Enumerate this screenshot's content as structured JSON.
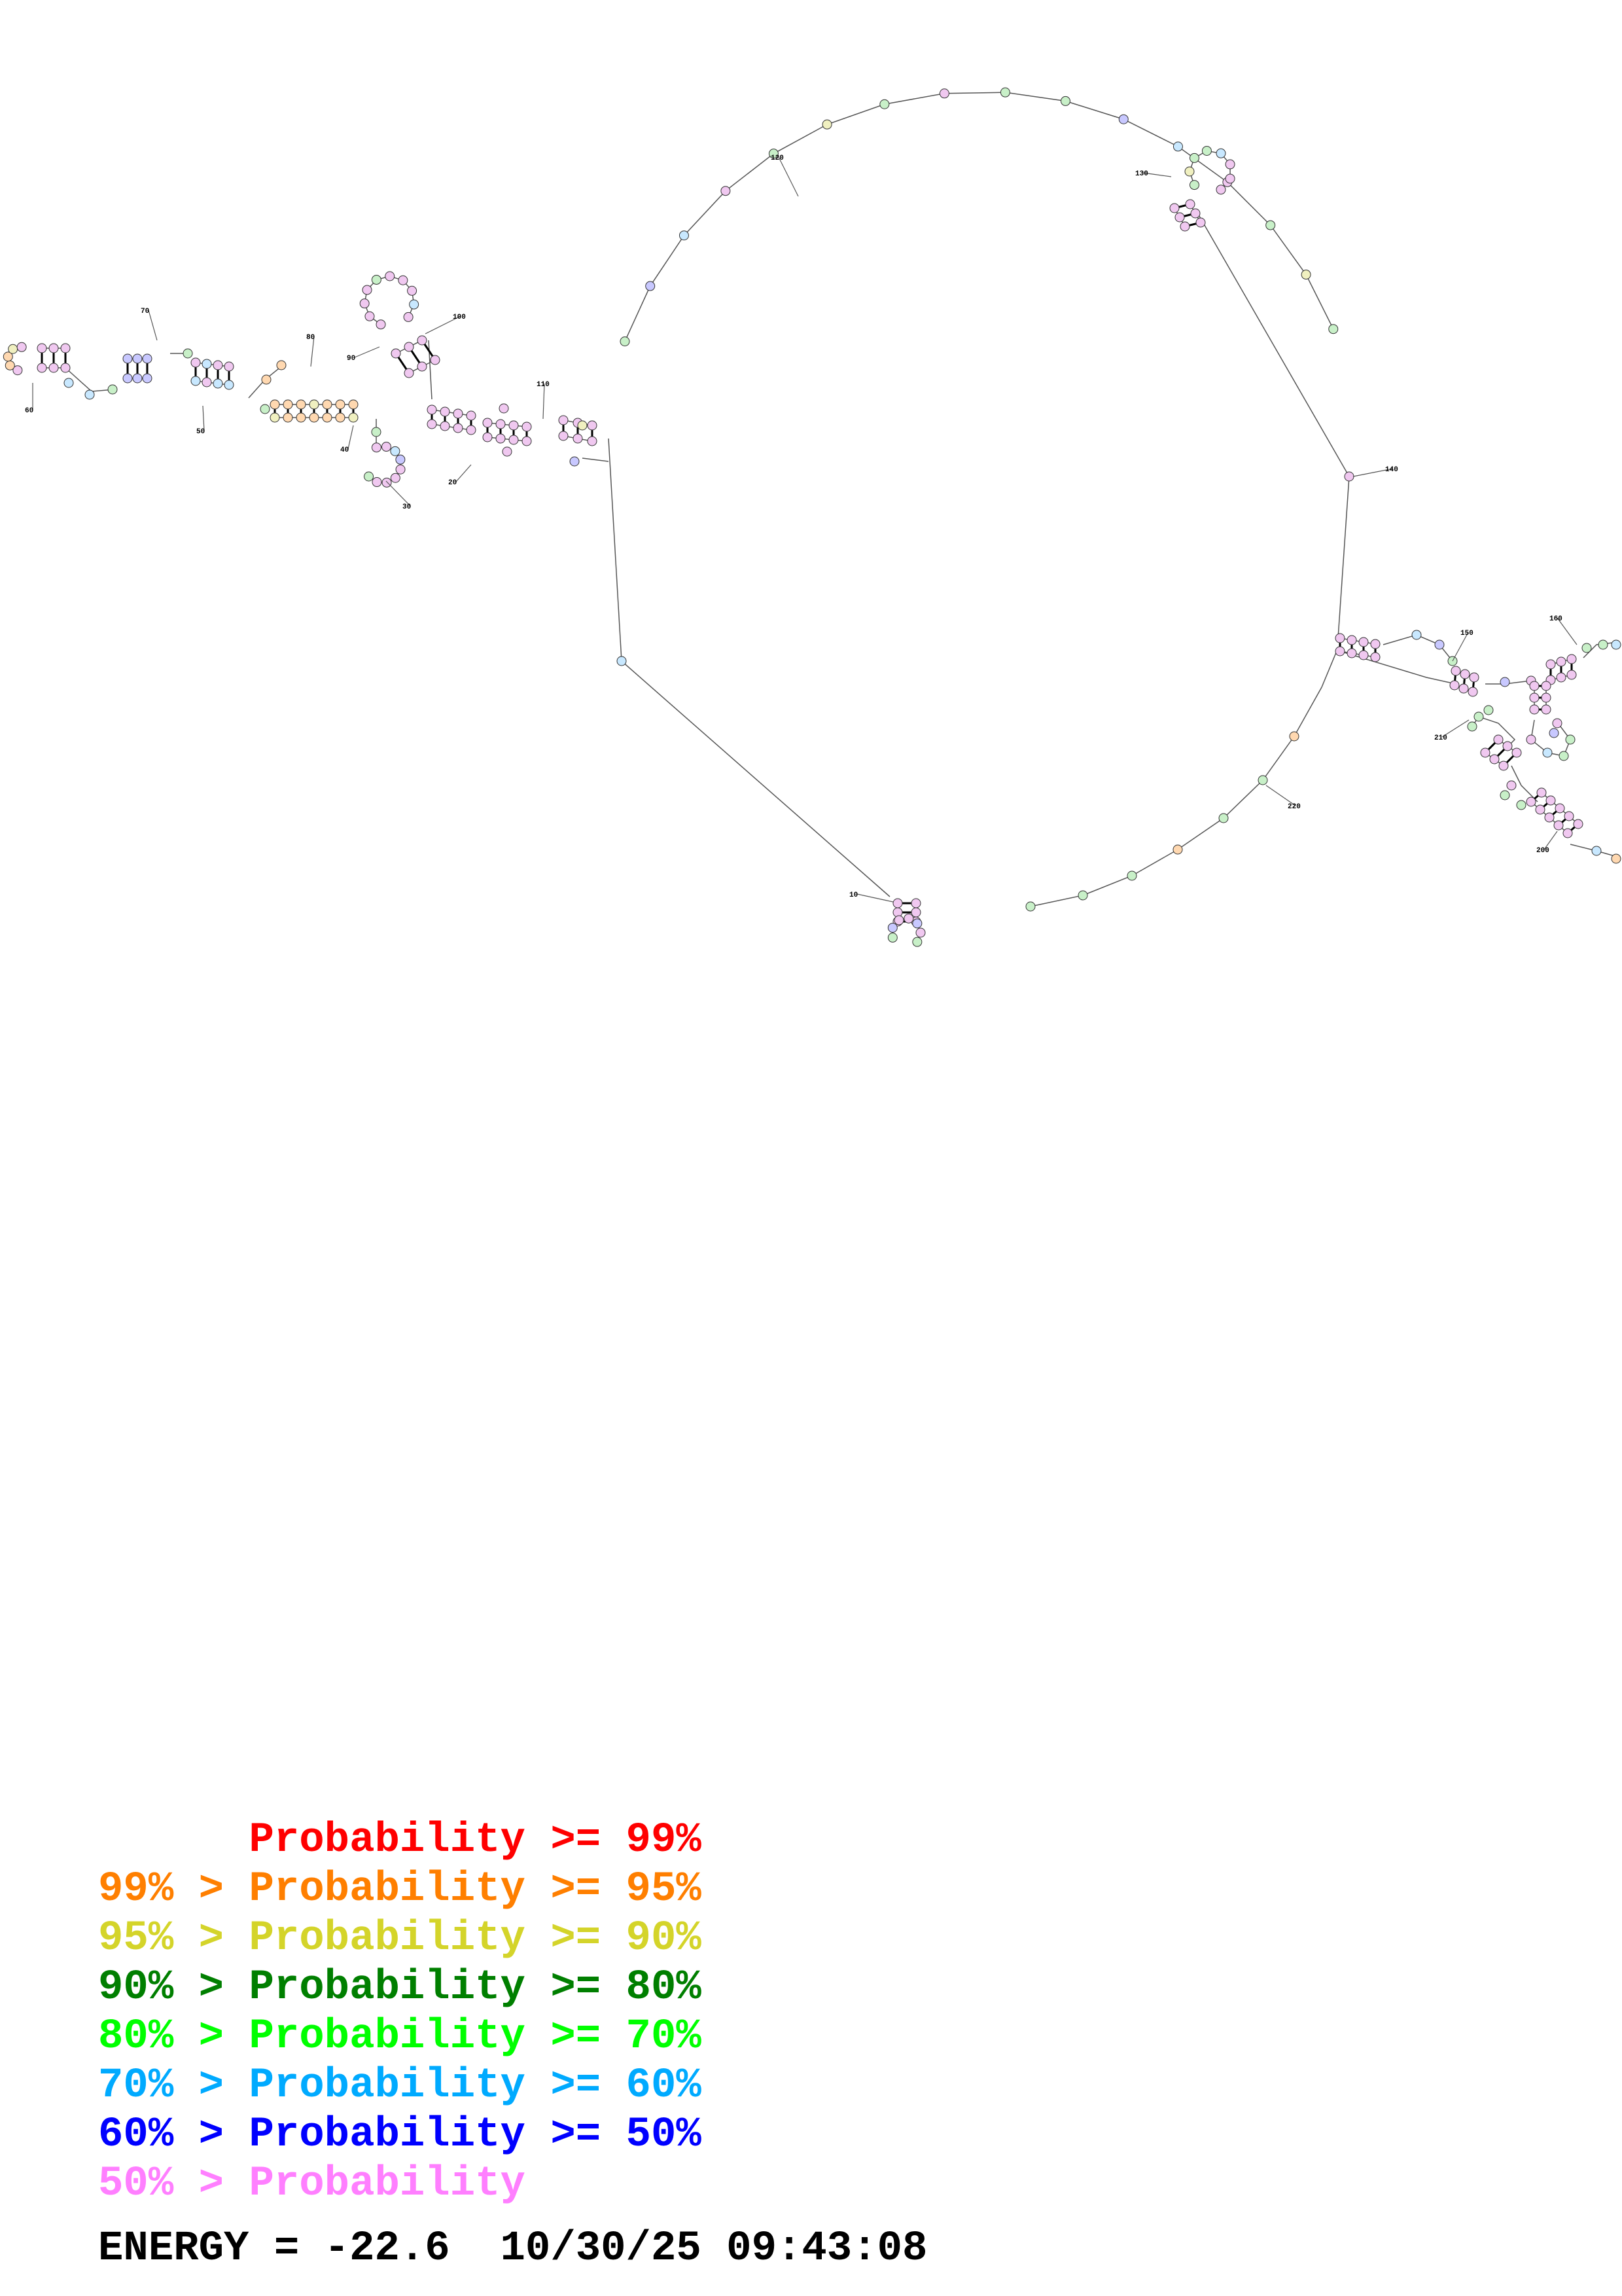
{
  "legend": [
    {
      "prefix": "",
      "label": "Probability",
      "cmp": ">=",
      "value": "99%",
      "color": "#ff0000"
    },
    {
      "prefix": "99% >",
      "label": "Probability",
      "cmp": ">=",
      "value": "95%",
      "color": "#ff7f00"
    },
    {
      "prefix": "95% >",
      "label": "Probability",
      "cmp": ">=",
      "value": "90%",
      "color": "#d4d42a"
    },
    {
      "prefix": "90% >",
      "label": "Probability",
      "cmp": ">=",
      "value": "80%",
      "color": "#007f00"
    },
    {
      "prefix": "80% >",
      "label": "Probability",
      "cmp": ">=",
      "value": "70%",
      "color": "#00ff00"
    },
    {
      "prefix": "70% >",
      "label": "Probability",
      "cmp": ">=",
      "value": "60%",
      "color": "#00aaff"
    },
    {
      "prefix": "60% >",
      "label": "Probability",
      "cmp": ">=",
      "value": "50%",
      "color": "#0000ff"
    },
    {
      "prefix": "50% >",
      "label": "Probability",
      "cmp": "",
      "value": "",
      "color": "#ff7fff"
    }
  ],
  "footer": {
    "energy_label": "ENERGY =",
    "energy_value": "-22.6",
    "timestamp": "10/30/25 09:43:08"
  },
  "structure": {
    "position_labels": [
      "10",
      "20",
      "30",
      "40",
      "50",
      "60",
      "70",
      "80",
      "90",
      "100",
      "110",
      "120",
      "130",
      "140",
      "150",
      "160",
      "200",
      "210",
      "220"
    ],
    "node_colors": {
      "pink": "#f0c8f0",
      "green": "#c8f0c8",
      "blue": "#c8c8ff",
      "cyan": "#c8e8ff",
      "orange": "#ffd8b0",
      "yellow": "#f0f0c0"
    }
  }
}
